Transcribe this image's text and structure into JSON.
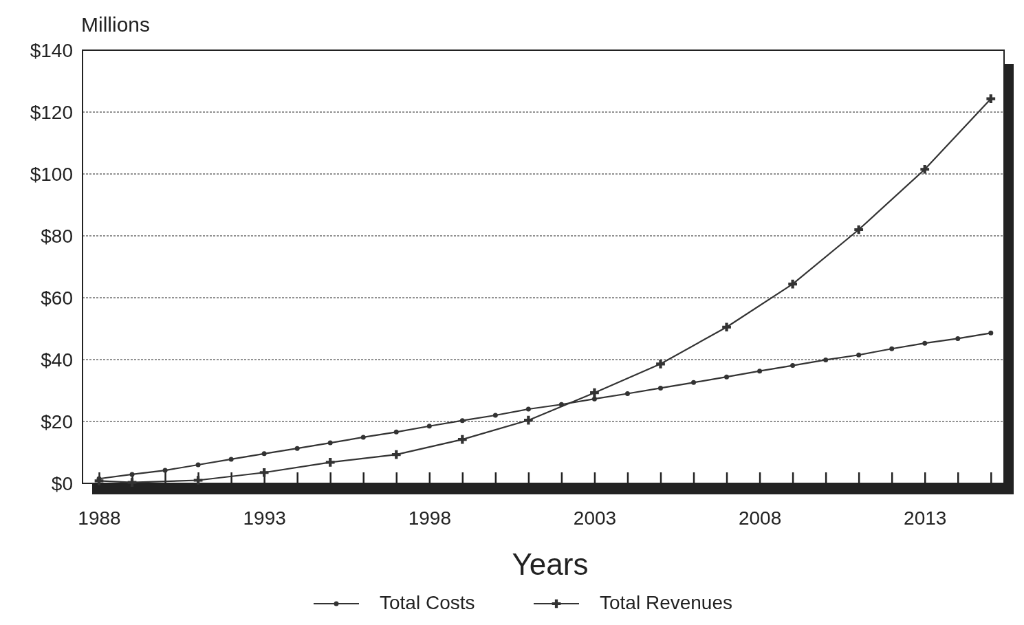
{
  "chart_data": {
    "type": "line",
    "xlabel": "Years",
    "ylabel": "Millions",
    "xlim": [
      1987.5,
      2015.4
    ],
    "ylim": [
      0,
      140
    ],
    "xticks": [
      1988,
      {
        "value": 1989,
        "label": null
      },
      {
        "value": 1990,
        "label": null
      },
      {
        "value": 1991,
        "label": null
      },
      {
        "value": 1992,
        "label": null
      },
      1993,
      {
        "value": 1994,
        "label": null
      },
      {
        "value": 1995,
        "label": null
      },
      {
        "value": 1996,
        "label": null
      },
      {
        "value": 1997,
        "label": null
      },
      1998,
      {
        "value": 1999,
        "label": null
      },
      {
        "value": 2000,
        "label": null
      },
      {
        "value": 2001,
        "label": null
      },
      {
        "value": 2002,
        "label": null
      },
      2003,
      {
        "value": 2004,
        "label": null
      },
      {
        "value": 2005,
        "label": null
      },
      {
        "value": 2006,
        "label": null
      },
      {
        "value": 2007,
        "label": null
      },
      2008,
      {
        "value": 2009,
        "label": null
      },
      {
        "value": 2010,
        "label": null
      },
      {
        "value": 2011,
        "label": null
      },
      {
        "value": 2012,
        "label": null
      },
      2013,
      {
        "value": 2014,
        "label": null
      },
      {
        "value": 2015,
        "label": null
      }
    ],
    "yticks": [
      {
        "value": 0,
        "label": "$0"
      },
      {
        "value": 20,
        "label": "$20"
      },
      {
        "value": 40,
        "label": "$40"
      },
      {
        "value": 60,
        "label": "$60"
      },
      {
        "value": 80,
        "label": "$80"
      },
      {
        "value": 100,
        "label": "$100"
      },
      {
        "value": 120,
        "label": "$120"
      },
      {
        "value": 140,
        "label": "$140"
      }
    ],
    "grid": "y",
    "legend": "bottom",
    "series": [
      {
        "name": "Total Costs",
        "color": "#333333",
        "marker": "circle",
        "x": [
          1988,
          1989,
          1990,
          1991,
          1992,
          1993,
          1994,
          1995,
          1996,
          1997,
          1998,
          1999,
          2000,
          2001,
          2002,
          2003,
          2004,
          2005,
          2006,
          2007,
          2008,
          2009,
          2010,
          2011,
          2012,
          2013,
          2014,
          2015
        ],
        "values": [
          1.5,
          2.9,
          4.2,
          6,
          7.8,
          9.6,
          11.3,
          13.1,
          14.9,
          16.6,
          18.5,
          20.3,
          22,
          24,
          25.5,
          27.3,
          29,
          30.8,
          32.6,
          34.4,
          36.3,
          38.1,
          39.9,
          41.5,
          43.5,
          45.3,
          46.8,
          48.6
        ]
      },
      {
        "name": "Total Revenues",
        "color": "#333333",
        "marker": "cross",
        "x": [
          1988,
          1989,
          1991,
          1993,
          1995,
          1997,
          1999,
          2001,
          2003,
          2005,
          2007,
          2009,
          2011,
          2013,
          2015
        ],
        "values": [
          0.8,
          0.3,
          1,
          3.5,
          6.8,
          9.3,
          14.2,
          20.4,
          29.3,
          38.6,
          50.5,
          64.4,
          82,
          101.5,
          124.3
        ]
      }
    ]
  }
}
